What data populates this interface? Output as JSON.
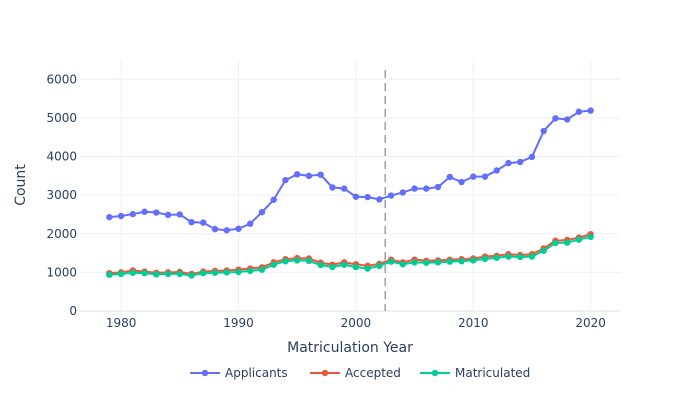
{
  "chart_data": {
    "type": "line",
    "title": "",
    "xlabel": "Matriculation Year",
    "ylabel": "Count",
    "x": [
      1979,
      1980,
      1981,
      1982,
      1983,
      1984,
      1985,
      1986,
      1987,
      1988,
      1989,
      1990,
      1991,
      1992,
      1993,
      1994,
      1995,
      1996,
      1997,
      1998,
      1999,
      2000,
      2001,
      2002,
      2003,
      2004,
      2005,
      2006,
      2007,
      2008,
      2009,
      2010,
      2011,
      2012,
      2013,
      2014,
      2015,
      2016,
      2017,
      2018,
      2019,
      2020
    ],
    "series": [
      {
        "name": "Applicants",
        "color": "#636efa",
        "values": [
          2430,
          2460,
          2510,
          2570,
          2550,
          2490,
          2500,
          2300,
          2290,
          2120,
          2090,
          2130,
          2260,
          2560,
          2880,
          3390,
          3540,
          3500,
          3530,
          3200,
          3170,
          2960,
          2950,
          2890,
          2990,
          3070,
          3170,
          3170,
          3210,
          3470,
          3340,
          3480,
          3480,
          3640,
          3830,
          3860,
          3990,
          4660,
          4990,
          4960,
          5160,
          5190
        ]
      },
      {
        "name": "Accepted",
        "color": "#ef553b",
        "values": [
          980,
          1000,
          1050,
          1020,
          990,
          1000,
          1010,
          960,
          1020,
          1040,
          1050,
          1070,
          1100,
          1130,
          1260,
          1340,
          1370,
          1360,
          1250,
          1200,
          1260,
          1210,
          1170,
          1220,
          1330,
          1260,
          1330,
          1300,
          1310,
          1330,
          1340,
          1360,
          1410,
          1430,
          1470,
          1450,
          1470,
          1620,
          1820,
          1840,
          1900,
          1990
        ]
      },
      {
        "name": "Matriculated",
        "color": "#00cc96",
        "values": [
          940,
          960,
          990,
          980,
          950,
          960,
          960,
          920,
          980,
          990,
          1000,
          1010,
          1040,
          1070,
          1200,
          1290,
          1310,
          1300,
          1190,
          1140,
          1200,
          1140,
          1100,
          1170,
          1280,
          1210,
          1260,
          1250,
          1260,
          1280,
          1290,
          1310,
          1350,
          1380,
          1410,
          1400,
          1410,
          1560,
          1760,
          1770,
          1850,
          1920
        ]
      }
    ],
    "xticks": [
      1980,
      1990,
      2000,
      2010,
      2020
    ],
    "yticks": [
      0,
      1000,
      2000,
      3000,
      4000,
      5000,
      6000
    ],
    "xlim": [
      1976.5,
      2022.5
    ],
    "ylim": [
      0,
      6500
    ],
    "vline_x": 2002.5,
    "grid": true,
    "legend": "bottom"
  }
}
